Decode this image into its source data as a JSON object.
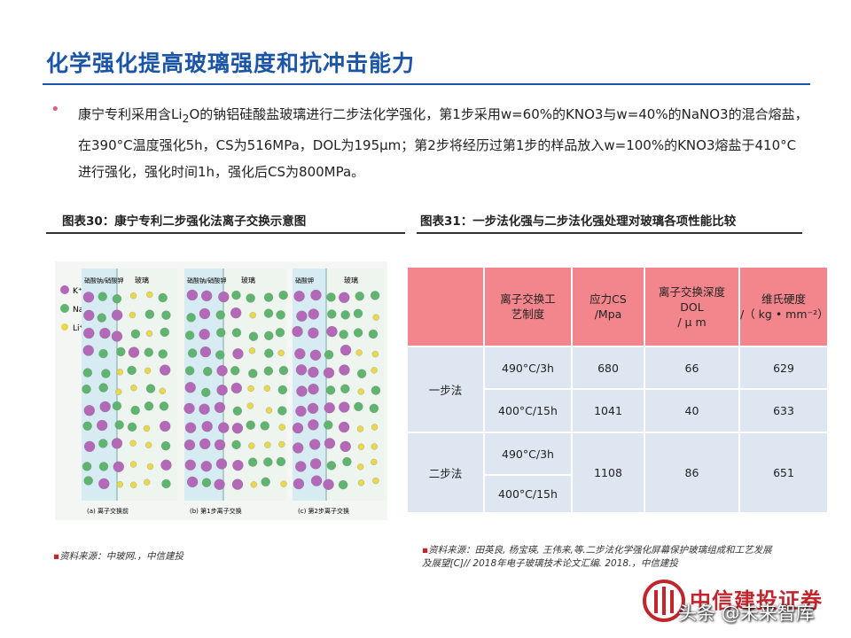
{
  "header": {
    "title": "化学强化提高玻璃强度和抗冲击能力"
  },
  "bullet": {
    "before": "康宁专利采用含Li",
    "sub": "2",
    "after": "O的钠铝硅酸盐玻璃进行二步法化学强化，第1步采用w=60%的KNO3与w=40%的NaNO3的混合熔盐，在390°C温度强化5h，CS为516MPa，DOL为195μm；第2步将经历过第1步的样品放入w=100%的KNO3熔盐于410°C进行强化，强化时间1h，强化后CS为800MPa。"
  },
  "figure30": {
    "title": "图表30：康宁专利二步强化法离子交换示意图",
    "legend": [
      "K⁺",
      "Na⁺",
      "Li⁺"
    ],
    "panels": [
      {
        "salt": "硝酸钠/硝酸钾",
        "glass": "玻璃",
        "caption": "(a) 离子交换前"
      },
      {
        "salt": "硝酸钠/硝酸钾",
        "glass": "玻璃",
        "caption": "(b) 第1步离子交换"
      },
      {
        "salt": "硝酸钾",
        "glass": "玻璃",
        "caption": "(c) 第2步离子交换"
      }
    ],
    "source": {
      "label": "资料来源：",
      "text": "中玻网.，中信建投"
    }
  },
  "figure31": {
    "title": "图表31：一步法化强与二步法化强处理对玻璃各项性能比较",
    "table": {
      "headers": [
        [
          "离子交换工",
          "艺制度"
        ],
        [
          "应力CS",
          "/Mpa"
        ],
        [
          "离子交换深度",
          "DOL",
          "/ μ m"
        ],
        [
          "维氏硬度",
          "/（ kg • mm⁻²）"
        ]
      ],
      "one_step": {
        "label": "一步法",
        "rows": [
          [
            "490°C/3h",
            680,
            66,
            629
          ],
          [
            "400°C/15h",
            1041,
            40,
            633
          ]
        ]
      },
      "two_step": {
        "label": "二步法",
        "processes": [
          "490°C/3h",
          "400°C/15h"
        ],
        "cs": 1108,
        "dol": 86,
        "hv": 651
      }
    },
    "source": {
      "label": "资料来源：",
      "line1": "田英良, 杨宝瑛, 王伟来,等.二步法化学强化屏幕保护玻璃组成和工艺发展",
      "line2": "及展望[C]// 2018年电子玻璃技术论文汇编. 2018.，",
      "tail": "中信建投"
    }
  },
  "footer": {
    "logo": "中信建投证券",
    "watermark": "头条 @未来智库"
  }
}
